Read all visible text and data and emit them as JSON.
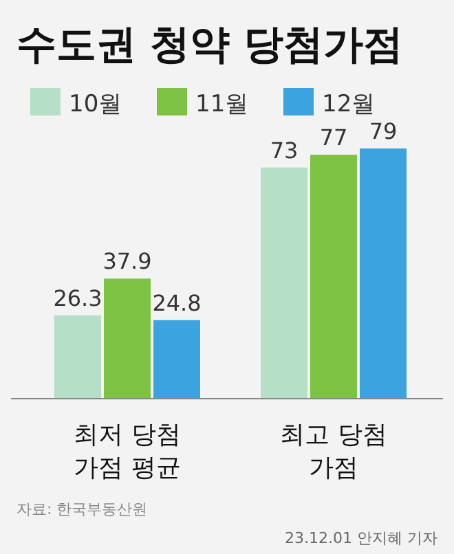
{
  "chart_data": {
    "type": "bar",
    "title": "수도권 청약 당첨가점",
    "categories": [
      "최저 당첨\n가점 평균",
      "최고 당첨\n가점"
    ],
    "series": [
      {
        "name": "10월",
        "color": "#b5dfc6",
        "values": [
          26.3,
          73
        ]
      },
      {
        "name": "11월",
        "color": "#7dc242",
        "values": [
          37.9,
          77
        ]
      },
      {
        "name": "12월",
        "color": "#3ba3dd",
        "values": [
          24.8,
          79
        ]
      }
    ],
    "data_labels": true,
    "legend": "top",
    "grid": false,
    "annotations": [
      "자료: 한국부동산원",
      "23.12.01 안지혜 기자"
    ]
  }
}
